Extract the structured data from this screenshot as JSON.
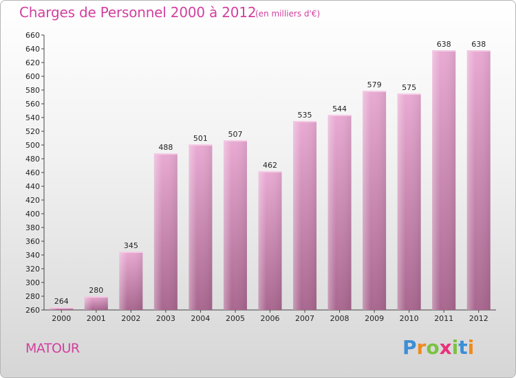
{
  "header": {
    "title": "Charges de Personnel 2000 à 2012",
    "subtitle": "(en milliers d'€)"
  },
  "footer": {
    "commune": "MATOUR",
    "logo": {
      "letters": [
        "P",
        "r",
        "o",
        "x",
        "i",
        "t",
        "i"
      ],
      "colors": [
        "#3b8fd6",
        "#f08a1c",
        "#7cc242",
        "#e8317b",
        "#7cc242",
        "#3b8fd6",
        "#f08a1c"
      ]
    }
  },
  "chart_data": {
    "type": "bar",
    "categories": [
      "2000",
      "2001",
      "2002",
      "2003",
      "2004",
      "2005",
      "2006",
      "2007",
      "2008",
      "2009",
      "2010",
      "2011",
      "2012"
    ],
    "values": [
      264,
      280,
      345,
      488,
      501,
      507,
      462,
      535,
      544,
      579,
      575,
      638,
      638
    ],
    "title": "Charges de Personnel 2000 à 2012",
    "xlabel": "",
    "ylabel": "",
    "ylim": [
      260,
      660
    ],
    "ytick_step": 20,
    "grid": false,
    "legend": "none",
    "bar_color": "#c77aa8"
  }
}
